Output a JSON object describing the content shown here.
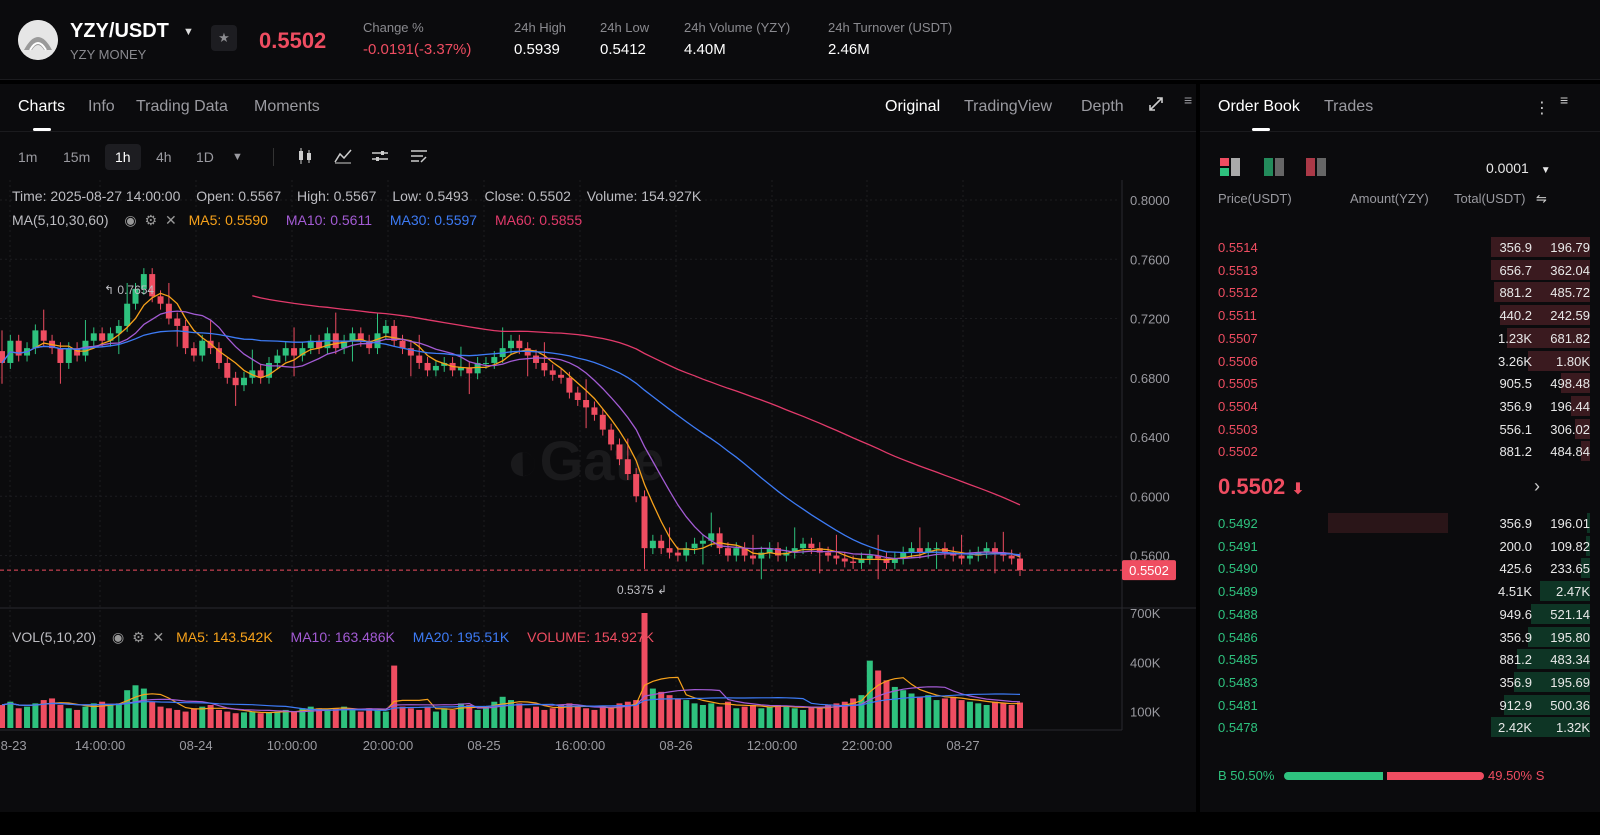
{
  "header": {
    "pair": "YZY/USDT",
    "subtitle": "YZY MONEY",
    "last_price": "0.5502",
    "stats": [
      {
        "label": "Change %",
        "value": "-0.0191(-3.37%)",
        "color": "red"
      },
      {
        "label": "24h High",
        "value": "0.5939"
      },
      {
        "label": "24h Low",
        "value": "0.5412"
      },
      {
        "label": "24h Volume (YZY)",
        "value": "4.40M"
      },
      {
        "label": "24h Turnover (USDT)",
        "value": "2.46M"
      }
    ]
  },
  "chart_tabs": [
    "Charts",
    "Info",
    "Trading Data",
    "Moments"
  ],
  "view_tabs": [
    "Original",
    "TradingView",
    "Depth"
  ],
  "timeframes": [
    "1m",
    "15m",
    "1h",
    "4h",
    "1D"
  ],
  "active_timeframe": "1h",
  "ohlc": {
    "time": "Time: 2025-08-27 14:00:00",
    "open": "Open: 0.5567",
    "high": "High: 0.5567",
    "low": "Low: 0.5493",
    "close": "Close: 0.5502",
    "volume": "Volume: 154.927K"
  },
  "ma_legend": {
    "label": "MA(5,10,30,60)",
    "ma5": "MA5: 0.5590",
    "ma10": "MA10: 0.5611",
    "ma30": "MA30: 0.5597",
    "ma60": "MA60: 0.5855"
  },
  "vol_legend": {
    "label": "VOL(5,10,20)",
    "ma5": "MA5: 143.542K",
    "ma10": "MA10: 163.486K",
    "ma20": "MA20: 195.51K",
    "volume": "VOLUME: 154.927K"
  },
  "colors": {
    "up": "#2ec27e",
    "down": "#ef4d61",
    "ma5": "#f7a21b",
    "ma10": "#a35bd4",
    "ma30": "#3d7bf5",
    "ma60": "#e23a6b"
  },
  "chart_data": {
    "type": "candlestick",
    "y_ticks": [
      "0.8000",
      "0.7600",
      "0.7200",
      "0.6800",
      "0.6400",
      "0.6000",
      "0.5600"
    ],
    "vol_ticks": [
      "700K",
      "400K",
      "100K"
    ],
    "x_ticks": [
      "08-23",
      "14:00:00",
      "08-24",
      "10:00:00",
      "20:00:00",
      "08-25",
      "16:00:00",
      "08-26",
      "12:00:00",
      "22:00:00",
      "08-27"
    ],
    "ylim": [
      0.53,
      0.8
    ],
    "high_marker": "0.7654",
    "low_marker": "0.5375",
    "current_price_label": "0.5502",
    "closes": [
      0.69,
      0.705,
      0.695,
      0.7,
      0.712,
      0.705,
      0.7,
      0.69,
      0.7,
      0.695,
      0.705,
      0.71,
      0.705,
      0.71,
      0.715,
      0.73,
      0.74,
      0.75,
      0.735,
      0.73,
      0.72,
      0.715,
      0.7,
      0.695,
      0.705,
      0.7,
      0.69,
      0.68,
      0.675,
      0.68,
      0.685,
      0.68,
      0.69,
      0.695,
      0.7,
      0.695,
      0.7,
      0.705,
      0.7,
      0.71,
      0.7,
      0.705,
      0.71,
      0.705,
      0.7,
      0.71,
      0.715,
      0.705,
      0.7,
      0.695,
      0.69,
      0.685,
      0.688,
      0.69,
      0.685,
      0.687,
      0.683,
      0.69,
      0.69,
      0.694,
      0.7,
      0.705,
      0.7,
      0.695,
      0.69,
      0.685,
      0.682,
      0.68,
      0.67,
      0.665,
      0.66,
      0.655,
      0.645,
      0.635,
      0.625,
      0.615,
      0.6,
      0.565,
      0.57,
      0.565,
      0.562,
      0.56,
      0.565,
      0.568,
      0.57,
      0.575,
      0.565,
      0.56,
      0.565,
      0.56,
      0.558,
      0.562,
      0.565,
      0.56,
      0.562,
      0.565,
      0.568,
      0.565,
      0.562,
      0.56,
      0.558,
      0.556,
      0.555,
      0.558,
      0.56,
      0.558,
      0.555,
      0.558,
      0.562,
      0.565,
      0.562,
      0.565,
      0.565,
      0.562,
      0.56,
      0.558,
      0.56,
      0.562,
      0.565,
      0.562,
      0.56,
      0.558,
      0.5502
    ],
    "volumes": [
      140,
      160,
      120,
      130,
      150,
      170,
      180,
      140,
      120,
      110,
      130,
      150,
      160,
      140,
      150,
      230,
      260,
      240,
      160,
      130,
      120,
      110,
      100,
      120,
      130,
      140,
      110,
      100,
      90,
      95,
      100,
      90,
      95,
      100,
      110,
      100,
      120,
      130,
      120,
      110,
      120,
      130,
      110,
      100,
      120,
      110,
      100,
      380,
      130,
      120,
      110,
      130,
      100,
      120,
      110,
      150,
      140,
      110,
      130,
      160,
      190,
      170,
      150,
      120,
      130,
      110,
      120,
      140,
      150,
      130,
      120,
      110,
      130,
      120,
      150,
      160,
      170,
      700,
      240,
      220,
      200,
      180,
      170,
      150,
      140,
      150,
      130,
      160,
      120,
      130,
      140,
      120,
      130,
      140,
      130,
      120,
      110,
      130,
      120,
      140,
      150,
      160,
      180,
      200,
      410,
      350,
      290,
      250,
      230,
      210,
      190,
      200,
      170,
      180,
      190,
      170,
      160,
      150,
      140,
      160,
      150,
      140,
      154.927
    ]
  },
  "orderbook": {
    "tabs": [
      "Order Book",
      "Trades"
    ],
    "precision": "0.0001",
    "headers": [
      "Price(USDT)",
      "Amount(YZY)",
      "Total(USDT)"
    ],
    "asks": [
      {
        "price": "0.5514",
        "amount": "356.9",
        "total": "196.79",
        "depth": 0.95
      },
      {
        "price": "0.5513",
        "amount": "656.7",
        "total": "362.04",
        "depth": 0.95
      },
      {
        "price": "0.5512",
        "amount": "881.2",
        "total": "485.72",
        "depth": 0.92
      },
      {
        "price": "0.5511",
        "amount": "440.2",
        "total": "242.59",
        "depth": 0.87
      },
      {
        "price": "0.5507",
        "amount": "1.23K",
        "total": "681.82",
        "depth": 0.8
      },
      {
        "price": "0.5506",
        "amount": "3.26K",
        "total": "1.80K",
        "depth": 0.6
      },
      {
        "price": "0.5505",
        "amount": "905.5",
        "total": "498.48",
        "depth": 0.28
      },
      {
        "price": "0.5504",
        "amount": "356.9",
        "total": "196.44",
        "depth": 0.18
      },
      {
        "price": "0.5503",
        "amount": "556.1",
        "total": "306.02",
        "depth": 0.14
      },
      {
        "price": "0.5502",
        "amount": "881.2",
        "total": "484.84",
        "depth": 0.09
      }
    ],
    "mid_price": "0.5502",
    "bids": [
      {
        "price": "0.5492",
        "amount": "356.9",
        "total": "196.01",
        "depth": 0.03
      },
      {
        "price": "0.5491",
        "amount": "200.0",
        "total": "109.82",
        "depth": 0.04
      },
      {
        "price": "0.5490",
        "amount": "425.6",
        "total": "233.65",
        "depth": 0.09
      },
      {
        "price": "0.5489",
        "amount": "4.51K",
        "total": "2.47K",
        "depth": 0.48
      },
      {
        "price": "0.5488",
        "amount": "949.6",
        "total": "521.14",
        "depth": 0.57
      },
      {
        "price": "0.5486",
        "amount": "356.9",
        "total": "195.80",
        "depth": 0.6
      },
      {
        "price": "0.5485",
        "amount": "881.2",
        "total": "483.34",
        "depth": 0.7
      },
      {
        "price": "0.5483",
        "amount": "356.9",
        "total": "195.69",
        "depth": 0.73
      },
      {
        "price": "0.5481",
        "amount": "912.9",
        "total": "500.36",
        "depth": 0.83
      },
      {
        "price": "0.5478",
        "amount": "2.42K",
        "total": "1.32K",
        "depth": 0.95
      }
    ],
    "bid_ratio": "B 50.50%",
    "ask_ratio": "49.50% S",
    "bid_ratio_value": 0.505
  }
}
